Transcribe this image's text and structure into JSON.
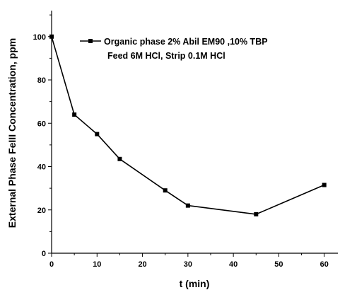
{
  "chart_data": {
    "type": "line",
    "xlabel": "t (min)",
    "ylabel": "External Phase FeIII Concentration, ppm",
    "xlim": [
      0,
      63
    ],
    "ylim": [
      0,
      112
    ],
    "x_ticks": [
      0,
      10,
      20,
      30,
      40,
      50,
      60
    ],
    "y_ticks": [
      0,
      20,
      40,
      60,
      80,
      100
    ],
    "grid": false,
    "legend_position": "top-right",
    "series": [
      {
        "name": "Organic phase 2% Abil EM90 ,10% TBP",
        "x": [
          0,
          5,
          10,
          15,
          25,
          30,
          45,
          60
        ],
        "y": [
          100,
          64,
          55,
          43.5,
          29,
          22,
          18,
          31.5
        ],
        "marker": "square",
        "color": "#000000"
      }
    ],
    "legend_line2": "Feed 6M HCl, Strip 0.1M HCl"
  }
}
